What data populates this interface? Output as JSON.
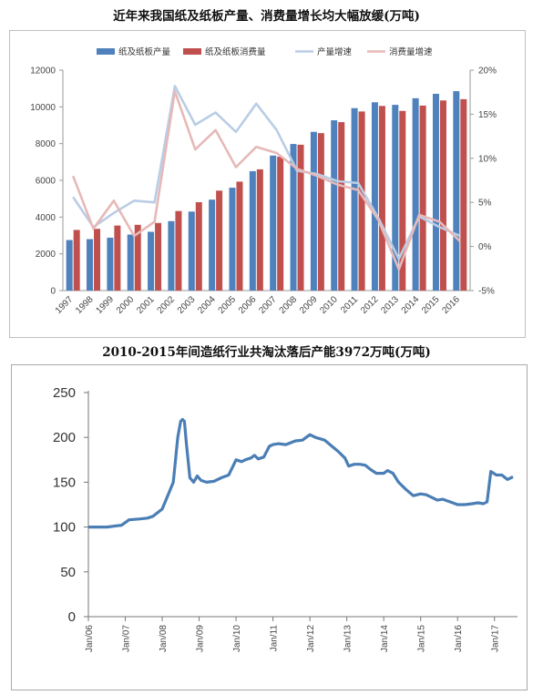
{
  "chart_data": [
    {
      "type": "bar",
      "title": "近年来我国纸及纸板产量、消费量增长均大幅放缓(万吨)",
      "categories": [
        "1997",
        "1998",
        "1999",
        "2000",
        "2001",
        "2002",
        "2003",
        "2004",
        "2005",
        "2006",
        "2007",
        "2008",
        "2009",
        "2010",
        "2011",
        "2012",
        "2013",
        "2014",
        "2015",
        "2016"
      ],
      "series": [
        {
          "name": "纸及纸板产量",
          "type": "bar",
          "axis": "left",
          "color": "#4f81bd",
          "values": [
            2750,
            2800,
            2880,
            3050,
            3200,
            3780,
            4300,
            4950,
            5600,
            6500,
            7350,
            7980,
            8640,
            9270,
            9930,
            10250,
            10110,
            10470,
            10710,
            10855
          ]
        },
        {
          "name": "纸及纸板消费量",
          "type": "bar",
          "axis": "left",
          "color": "#c0504d",
          "values": [
            3300,
            3360,
            3540,
            3580,
            3680,
            4330,
            4810,
            5440,
            5930,
            6600,
            7290,
            7940,
            8570,
            9170,
            9750,
            10050,
            9780,
            10070,
            10350,
            10420
          ]
        },
        {
          "name": "产量增速",
          "type": "line",
          "axis": "right",
          "color": "#b9cde5",
          "values": [
            5.6,
            2.2,
            3.8,
            5.2,
            5.0,
            18.2,
            13.8,
            15.2,
            13.0,
            16.2,
            13.2,
            8.6,
            8.2,
            7.4,
            7.2,
            3.2,
            -1.4,
            3.4,
            2.2,
            1.2
          ]
        },
        {
          "name": "消费量增速",
          "type": "line",
          "axis": "right",
          "color": "#e6b9b8",
          "values": [
            8.0,
            2.0,
            5.2,
            1.2,
            2.8,
            17.6,
            11.0,
            13.2,
            9.0,
            11.3,
            10.6,
            8.8,
            8.0,
            7.0,
            6.4,
            3.0,
            -2.6,
            3.6,
            2.8,
            0.6
          ]
        }
      ],
      "ylim_left": [
        0,
        12000
      ],
      "yticks_left": [
        "0",
        "2000",
        "4000",
        "6000",
        "8000",
        "10000",
        "12000"
      ],
      "ylim_right": [
        -5,
        20
      ],
      "yticks_right": [
        "-5%",
        "0%",
        "5%",
        "10%",
        "15%",
        "20%"
      ],
      "legend": [
        "纸及纸板产量",
        "纸及纸板消费量",
        "产量增速",
        "消费量增速"
      ],
      "legend_position": "top",
      "grid": false
    },
    {
      "type": "line",
      "title": "2010-2015年间造纸行业共淘汰落后产能3972万吨(万吨)",
      "x_ticks": [
        "Jan/06",
        "Jan/07",
        "Jan/08",
        "Jan/09",
        "Jan/10",
        "Jan/11",
        "Jan/12",
        "Jan/13",
        "Jan/14",
        "Jan/15",
        "Jan/16",
        "Jan/17"
      ],
      "ylim": [
        0,
        250
      ],
      "yticks": [
        "0",
        "50",
        "100",
        "150",
        "200",
        "250"
      ],
      "color": "#4a7eb5",
      "grid": false,
      "x": [
        2006.0,
        2006.5,
        2006.9,
        2007.1,
        2007.4,
        2007.6,
        2007.75,
        2008.0,
        2008.15,
        2008.3,
        2008.42,
        2008.5,
        2008.55,
        2008.6,
        2008.65,
        2008.75,
        2008.85,
        2008.95,
        2009.05,
        2009.2,
        2009.4,
        2009.6,
        2009.8,
        2010.0,
        2010.15,
        2010.25,
        2010.4,
        2010.5,
        2010.6,
        2010.75,
        2010.9,
        2011.0,
        2011.15,
        2011.35,
        2011.6,
        2011.8,
        2012.0,
        2012.15,
        2012.4,
        2012.6,
        2012.75,
        2012.95,
        2013.05,
        2013.2,
        2013.35,
        2013.5,
        2013.65,
        2013.8,
        2014.0,
        2014.1,
        2014.25,
        2014.4,
        2014.6,
        2014.8,
        2015.0,
        2015.15,
        2015.3,
        2015.45,
        2015.6,
        2015.8,
        2016.0,
        2016.2,
        2016.4,
        2016.55,
        2016.7,
        2016.8,
        2016.9,
        2017.05,
        2017.2,
        2017.35,
        2017.5
      ],
      "y": [
        100,
        100,
        102,
        108,
        109,
        110,
        112,
        120,
        135,
        150,
        200,
        218,
        220,
        218,
        195,
        155,
        150,
        157,
        152,
        150,
        151,
        155,
        158,
        175,
        173,
        175,
        177,
        180,
        176,
        178,
        190,
        192,
        193,
        192,
        196,
        197,
        203,
        200,
        197,
        190,
        185,
        177,
        168,
        170,
        170,
        169,
        164,
        160,
        160,
        163,
        160,
        150,
        142,
        135,
        137,
        136,
        133,
        130,
        131,
        128,
        125,
        125,
        126,
        127,
        126,
        128,
        162,
        158,
        158,
        153,
        156
      ]
    }
  ]
}
